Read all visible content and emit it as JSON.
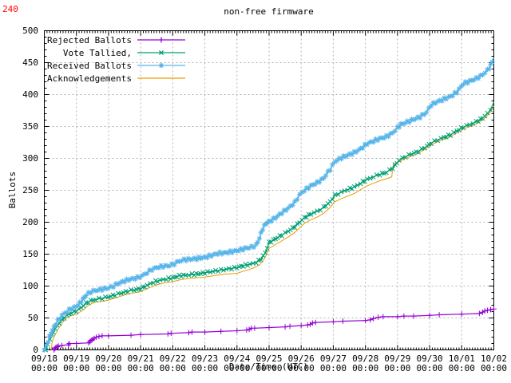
{
  "annotation": {
    "top_left_count": "240",
    "color": "#ff0000"
  },
  "chart_data": {
    "type": "line",
    "title": "non-free firmware",
    "xlabel": "Date/Time (UTC)",
    "ylabel": "Ballots",
    "ylim": [
      0,
      500
    ],
    "y_tick_step": 50,
    "y_minor_step": 10,
    "y_tick_labels": [
      "0",
      "50",
      "100",
      "150",
      "200",
      "250",
      "300",
      "350",
      "400",
      "450",
      "500"
    ],
    "x_range_days": 14,
    "x_minor_step_hours": 2,
    "x_ticks": [
      {
        "date": "09/18",
        "time": "00:00"
      },
      {
        "date": "09/19",
        "time": "00:00"
      },
      {
        "date": "09/20",
        "time": "00:00"
      },
      {
        "date": "09/21",
        "time": "00:00"
      },
      {
        "date": "09/22",
        "time": "00:00"
      },
      {
        "date": "09/23",
        "time": "00:00"
      },
      {
        "date": "09/24",
        "time": "00:00"
      },
      {
        "date": "09/25",
        "time": "00:00"
      },
      {
        "date": "09/26",
        "time": "00:00"
      },
      {
        "date": "09/27",
        "time": "00:00"
      },
      {
        "date": "09/28",
        "time": "00:00"
      },
      {
        "date": "09/29",
        "time": "00:00"
      },
      {
        "date": "09/30",
        "time": "00:00"
      },
      {
        "date": "10/01",
        "time": "00:00"
      },
      {
        "date": "10/02",
        "time": "00:00"
      }
    ],
    "grid": true,
    "grid_color": "#b3b3b3",
    "legend_position": "top-left-inside",
    "series": [
      {
        "name": "Rejected Ballots",
        "color": "#9400d3",
        "marker": "plus",
        "points": [
          [
            0.3,
            0
          ],
          [
            0.33,
            2
          ],
          [
            0.36,
            4
          ],
          [
            0.4,
            5
          ],
          [
            0.44,
            6
          ],
          [
            0.55,
            7
          ],
          [
            0.75,
            8
          ],
          [
            0.78,
            10
          ],
          [
            1.0,
            10
          ],
          [
            1.38,
            11
          ],
          [
            1.42,
            13
          ],
          [
            1.46,
            15
          ],
          [
            1.5,
            16
          ],
          [
            1.55,
            18
          ],
          [
            1.62,
            20
          ],
          [
            1.7,
            21
          ],
          [
            1.8,
            22
          ],
          [
            2.0,
            22
          ],
          [
            2.7,
            23
          ],
          [
            3.0,
            24
          ],
          [
            3.85,
            25
          ],
          [
            3.95,
            26
          ],
          [
            4.5,
            27
          ],
          [
            4.6,
            28
          ],
          [
            5.0,
            28
          ],
          [
            5.5,
            29
          ],
          [
            6.0,
            30
          ],
          [
            6.3,
            31
          ],
          [
            6.38,
            32
          ],
          [
            6.45,
            34
          ],
          [
            6.55,
            34
          ],
          [
            7.0,
            35
          ],
          [
            7.5,
            36
          ],
          [
            7.65,
            37
          ],
          [
            8.0,
            38
          ],
          [
            8.2,
            39
          ],
          [
            8.28,
            40
          ],
          [
            8.35,
            42
          ],
          [
            8.45,
            43
          ],
          [
            9.0,
            44
          ],
          [
            9.3,
            45
          ],
          [
            10.0,
            46
          ],
          [
            10.15,
            47
          ],
          [
            10.25,
            49
          ],
          [
            10.4,
            51
          ],
          [
            10.55,
            52
          ],
          [
            11.0,
            52
          ],
          [
            11.2,
            53
          ],
          [
            11.5,
            53
          ],
          [
            12.0,
            54
          ],
          [
            12.3,
            55
          ],
          [
            13.0,
            56
          ],
          [
            13.55,
            57
          ],
          [
            13.65,
            59
          ],
          [
            13.72,
            61
          ],
          [
            13.8,
            62
          ],
          [
            13.9,
            63
          ],
          [
            14.0,
            64
          ]
        ]
      },
      {
        "name": "Vote Tallied,",
        "color": "#009e73",
        "marker": "cross",
        "points": [
          [
            0.04,
            0
          ],
          [
            0.1,
            8
          ],
          [
            0.18,
            18
          ],
          [
            0.28,
            28
          ],
          [
            0.4,
            38
          ],
          [
            0.55,
            47
          ],
          [
            0.7,
            54
          ],
          [
            0.85,
            58
          ],
          [
            1.0,
            61
          ],
          [
            1.15,
            66
          ],
          [
            1.3,
            73
          ],
          [
            1.45,
            77
          ],
          [
            1.6,
            79
          ],
          [
            1.8,
            81
          ],
          [
            2.0,
            83
          ],
          [
            2.2,
            86
          ],
          [
            2.4,
            89
          ],
          [
            2.6,
            92
          ],
          [
            2.8,
            94
          ],
          [
            3.0,
            96
          ],
          [
            3.2,
            101
          ],
          [
            3.4,
            106
          ],
          [
            3.6,
            109
          ],
          [
            3.8,
            111
          ],
          [
            4.0,
            113
          ],
          [
            4.2,
            116
          ],
          [
            4.4,
            117
          ],
          [
            4.6,
            118
          ],
          [
            4.8,
            119
          ],
          [
            5.0,
            121
          ],
          [
            5.25,
            123
          ],
          [
            5.5,
            125
          ],
          [
            5.75,
            127
          ],
          [
            6.0,
            129
          ],
          [
            6.2,
            132
          ],
          [
            6.4,
            134
          ],
          [
            6.6,
            137
          ],
          [
            6.75,
            142
          ],
          [
            6.88,
            152
          ],
          [
            7.0,
            168
          ],
          [
            7.2,
            174
          ],
          [
            7.4,
            180
          ],
          [
            7.6,
            186
          ],
          [
            7.8,
            193
          ],
          [
            7.95,
            200
          ],
          [
            8.1,
            207
          ],
          [
            8.3,
            213
          ],
          [
            8.5,
            217
          ],
          [
            8.7,
            223
          ],
          [
            8.9,
            232
          ],
          [
            9.05,
            242
          ],
          [
            9.25,
            247
          ],
          [
            9.45,
            251
          ],
          [
            9.65,
            255
          ],
          [
            9.85,
            261
          ],
          [
            10.05,
            267
          ],
          [
            10.25,
            271
          ],
          [
            10.45,
            275
          ],
          [
            10.65,
            278
          ],
          [
            10.85,
            285
          ],
          [
            11.05,
            297
          ],
          [
            11.25,
            303
          ],
          [
            11.45,
            307
          ],
          [
            11.65,
            311
          ],
          [
            11.85,
            317
          ],
          [
            12.05,
            324
          ],
          [
            12.25,
            329
          ],
          [
            12.45,
            333
          ],
          [
            12.65,
            337
          ],
          [
            12.85,
            343
          ],
          [
            13.05,
            349
          ],
          [
            13.25,
            353
          ],
          [
            13.45,
            357
          ],
          [
            13.65,
            363
          ],
          [
            13.8,
            370
          ],
          [
            13.9,
            377
          ],
          [
            14.0,
            388
          ]
        ]
      },
      {
        "name": "Received Ballots",
        "color": "#56b4e9",
        "marker": "star",
        "points": [
          [
            0,
            0
          ],
          [
            0.06,
            6
          ],
          [
            0.12,
            14
          ],
          [
            0.2,
            25
          ],
          [
            0.3,
            36
          ],
          [
            0.42,
            46
          ],
          [
            0.55,
            54
          ],
          [
            0.7,
            60
          ],
          [
            0.85,
            65
          ],
          [
            1.0,
            68
          ],
          [
            1.1,
            73
          ],
          [
            1.2,
            79
          ],
          [
            1.3,
            86
          ],
          [
            1.45,
            91
          ],
          [
            1.6,
            93
          ],
          [
            1.8,
            95
          ],
          [
            2.0,
            97
          ],
          [
            2.15,
            100
          ],
          [
            2.3,
            104
          ],
          [
            2.5,
            108
          ],
          [
            2.7,
            111
          ],
          [
            2.9,
            113
          ],
          [
            3.05,
            116
          ],
          [
            3.2,
            121
          ],
          [
            3.35,
            126
          ],
          [
            3.5,
            129
          ],
          [
            3.7,
            131
          ],
          [
            3.9,
            132
          ],
          [
            4.05,
            135
          ],
          [
            4.2,
            139
          ],
          [
            4.35,
            141
          ],
          [
            4.55,
            142
          ],
          [
            4.75,
            143
          ],
          [
            5.0,
            145
          ],
          [
            5.2,
            148
          ],
          [
            5.4,
            151
          ],
          [
            5.6,
            152
          ],
          [
            5.85,
            154
          ],
          [
            6.05,
            156
          ],
          [
            6.25,
            159
          ],
          [
            6.45,
            161
          ],
          [
            6.6,
            164
          ],
          [
            6.7,
            175
          ],
          [
            6.8,
            190
          ],
          [
            6.9,
            198
          ],
          [
            7.0,
            201
          ],
          [
            7.2,
            207
          ],
          [
            7.4,
            215
          ],
          [
            7.6,
            222
          ],
          [
            7.8,
            231
          ],
          [
            7.95,
            243
          ],
          [
            8.1,
            250
          ],
          [
            8.3,
            257
          ],
          [
            8.5,
            262
          ],
          [
            8.7,
            269
          ],
          [
            8.9,
            283
          ],
          [
            9.05,
            295
          ],
          [
            9.25,
            301
          ],
          [
            9.45,
            305
          ],
          [
            9.65,
            309
          ],
          [
            9.85,
            315
          ],
          [
            10.05,
            323
          ],
          [
            10.25,
            327
          ],
          [
            10.45,
            331
          ],
          [
            10.65,
            334
          ],
          [
            10.85,
            340
          ],
          [
            11.0,
            348
          ],
          [
            11.1,
            353
          ],
          [
            11.3,
            357
          ],
          [
            11.5,
            361
          ],
          [
            11.7,
            365
          ],
          [
            11.9,
            372
          ],
          [
            12.05,
            384
          ],
          [
            12.25,
            389
          ],
          [
            12.45,
            393
          ],
          [
            12.65,
            397
          ],
          [
            12.85,
            404
          ],
          [
            13.05,
            417
          ],
          [
            13.25,
            421
          ],
          [
            13.45,
            425
          ],
          [
            13.65,
            431
          ],
          [
            13.8,
            438
          ],
          [
            13.9,
            446
          ],
          [
            14.0,
            458
          ]
        ]
      },
      {
        "name": "Acknowledgements",
        "color": "#e69f00",
        "marker": "none",
        "points": [
          [
            0.22,
            0
          ],
          [
            0.24,
            12
          ],
          [
            0.3,
            20
          ],
          [
            0.4,
            30
          ],
          [
            0.55,
            42
          ],
          [
            0.7,
            50
          ],
          [
            0.85,
            54
          ],
          [
            1.0,
            56
          ],
          [
            1.2,
            62
          ],
          [
            1.4,
            71
          ],
          [
            1.6,
            75
          ],
          [
            1.8,
            76
          ],
          [
            2.0,
            78
          ],
          [
            2.25,
            82
          ],
          [
            2.5,
            86
          ],
          [
            2.75,
            89
          ],
          [
            3.0,
            91
          ],
          [
            3.25,
            97
          ],
          [
            3.5,
            102
          ],
          [
            3.75,
            105
          ],
          [
            4.0,
            107
          ],
          [
            4.25,
            110
          ],
          [
            4.5,
            112
          ],
          [
            4.75,
            113
          ],
          [
            5.0,
            114
          ],
          [
            5.25,
            116
          ],
          [
            5.5,
            118
          ],
          [
            5.75,
            119
          ],
          [
            6.0,
            120
          ],
          [
            6.25,
            124
          ],
          [
            6.5,
            128
          ],
          [
            6.7,
            133
          ],
          [
            6.85,
            142
          ],
          [
            7.0,
            159
          ],
          [
            7.2,
            165
          ],
          [
            7.4,
            171
          ],
          [
            7.6,
            177
          ],
          [
            7.8,
            184
          ],
          [
            7.95,
            191
          ],
          [
            8.1,
            198
          ],
          [
            8.3,
            204
          ],
          [
            8.5,
            208
          ],
          [
            8.7,
            214
          ],
          [
            8.9,
            223
          ],
          [
            9.05,
            232
          ],
          [
            9.25,
            237
          ],
          [
            9.45,
            241
          ],
          [
            9.65,
            245
          ],
          [
            9.85,
            251
          ],
          [
            10.05,
            257
          ],
          [
            10.25,
            261
          ],
          [
            10.45,
            265
          ],
          [
            10.65,
            268
          ],
          [
            10.82,
            271
          ],
          [
            10.87,
            291
          ],
          [
            11.05,
            295
          ],
          [
            11.25,
            300
          ],
          [
            11.45,
            304
          ],
          [
            11.65,
            308
          ],
          [
            11.85,
            314
          ],
          [
            12.05,
            321
          ],
          [
            12.25,
            326
          ],
          [
            12.45,
            330
          ],
          [
            12.65,
            334
          ],
          [
            12.85,
            340
          ],
          [
            13.05,
            346
          ],
          [
            13.25,
            350
          ],
          [
            13.45,
            354
          ],
          [
            13.65,
            360
          ],
          [
            13.8,
            367
          ],
          [
            13.9,
            373
          ],
          [
            14.0,
            382
          ]
        ]
      }
    ]
  }
}
